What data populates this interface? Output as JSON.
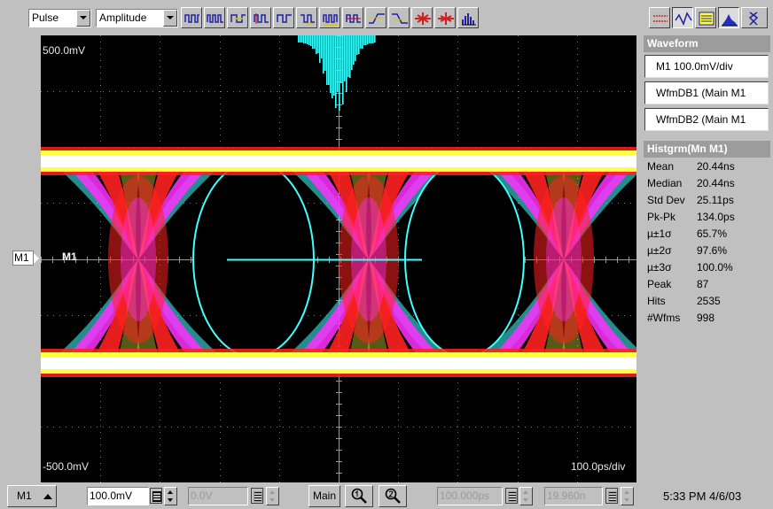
{
  "toolbar": {
    "measurement_category": "Pulse",
    "measurement_type": "Amplitude",
    "tool_icons": [
      "pulse-train-icon",
      "multi-pulse-icon",
      "cross-pulse-icon",
      "amplitude-pulse-icon",
      "high-pulse-icon",
      "low-pulse-icon",
      "burst-pulse-icon",
      "rms-pulse-icon",
      "rise-icon",
      "fall-icon",
      "positive-crossing-icon",
      "negative-crossing-icon",
      "histogram-tool-icon"
    ],
    "right_icons": [
      "cursor-off-icon",
      "waveform-icon",
      "zone-icon",
      "histogram-icon",
      "scale-icon"
    ]
  },
  "graticule": {
    "top_label": "500.0mV",
    "bottom_label": "-500.0mV",
    "time_label": "100.0ps/div",
    "marker_box": "M1",
    "marker_text": "M1",
    "trace_colors": {
      "white": "#ffffff",
      "yellow": "#ffff40",
      "red": "#ff2020",
      "magenta": "#ff30ff",
      "cyan": "#40ffff"
    }
  },
  "right_panel": {
    "waveform_header": "Waveform",
    "waveforms": [
      "M1 100.0mV/div",
      "WfmDB1 (Main M1",
      "WfmDB2 (Main M1"
    ],
    "histogram_header": "Histgrm(Mn M1)",
    "stats": [
      {
        "label": "Mean",
        "value": "20.44ns"
      },
      {
        "label": "Median",
        "value": "20.44ns"
      },
      {
        "label": "Std Dev",
        "value": "25.11ps"
      },
      {
        "label": "Pk-Pk",
        "value": "134.0ps"
      },
      {
        "label": "µ±1σ",
        "value": "65.7%"
      },
      {
        "label": "µ±2σ",
        "value": "97.6%"
      },
      {
        "label": "µ±3σ",
        "value": "100.0%"
      },
      {
        "label": "Peak",
        "value": "87"
      },
      {
        "label": "Hits",
        "value": "2535"
      },
      {
        "label": "#Wfms",
        "value": "998"
      }
    ]
  },
  "statusbar": {
    "source": "M1",
    "scale": "100.0mV",
    "offset": "0.0V",
    "timebase": "Main",
    "position": "100.000ps",
    "delay": "19.960n",
    "clock": "5:33 PM 4/6/03"
  }
}
